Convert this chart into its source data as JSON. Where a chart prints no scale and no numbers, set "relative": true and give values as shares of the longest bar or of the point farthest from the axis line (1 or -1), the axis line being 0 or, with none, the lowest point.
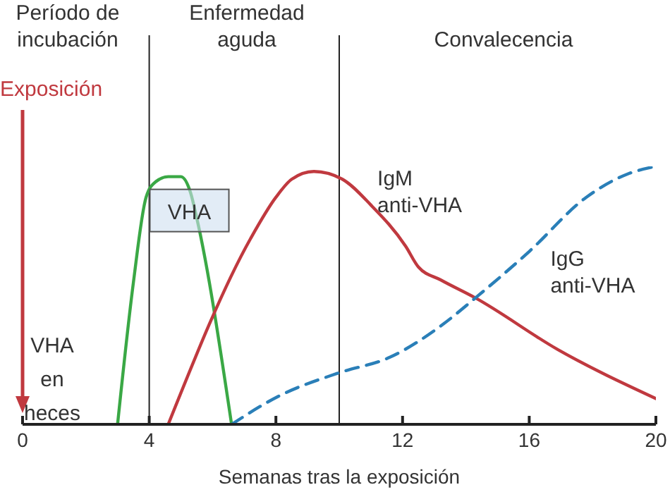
{
  "chart_data": {
    "type": "line",
    "relative": true,
    "xlabel": "Semanas tras la exposición",
    "xlim": [
      0,
      20
    ],
    "xticks": [
      0,
      4,
      8,
      12,
      16,
      20
    ],
    "marker": "none",
    "line_style": "solid",
    "series": [
      {
        "name": "VHA",
        "color": "#3aa845",
        "x": [
          3.0,
          3.5,
          3.9,
          4.2,
          4.6,
          5.0,
          5.3,
          5.5,
          6.6
        ],
        "values": [
          0,
          0.55,
          0.88,
          0.94,
          0.96,
          0.96,
          0.9,
          0.8,
          0
        ]
      },
      {
        "name": "IgM anti-VHA",
        "color": "#c0393f",
        "x": [
          4.6,
          7.2,
          8.0,
          8.5,
          9.2,
          10.1,
          11.0,
          12.1,
          12.5,
          13.2,
          14.3,
          16.9,
          20
        ],
        "values": [
          0,
          0.72,
          0.88,
          0.95,
          0.98,
          0.95,
          0.85,
          0.69,
          0.61,
          0.56,
          0.49,
          0.29,
          0.1
        ]
      },
      {
        "name": "IgG anti-VHA",
        "color": "#2a7fb8",
        "line_style": "dashed",
        "x": [
          6.6,
          8.1,
          10,
          11.6,
          13.3,
          14.3,
          16,
          17.8,
          19.1,
          20
        ],
        "values": [
          0,
          0.11,
          0.2,
          0.26,
          0.39,
          0.49,
          0.67,
          0.88,
          0.97,
          1
        ]
      }
    ],
    "ref_lines": [
      {
        "axis": "x",
        "value": 0,
        "label": "Exposición",
        "color": "#c0393f"
      },
      {
        "axis": "x",
        "value": 4,
        "color": "#222222"
      },
      {
        "axis": "x",
        "value": 10,
        "color": "#222222"
      }
    ],
    "annotations": [
      "Período de incubación",
      "Enfermedad aguda",
      "Convalecencia",
      "VHA en heces"
    ]
  }
}
